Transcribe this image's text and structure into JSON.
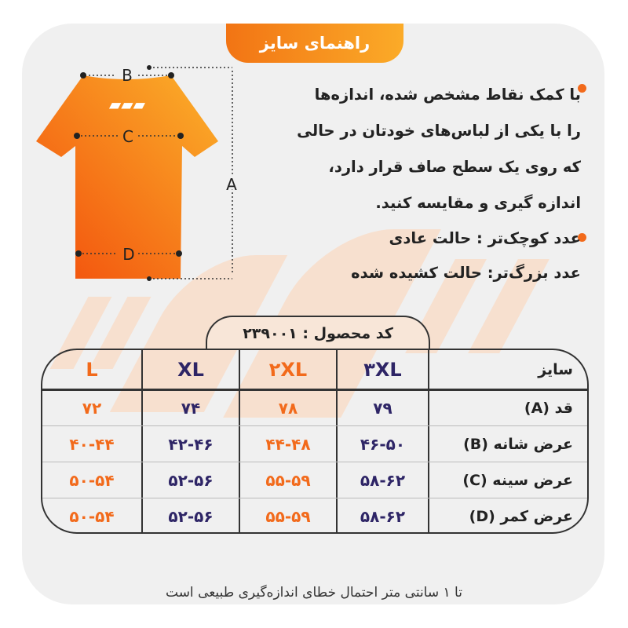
{
  "title": "راهنمای سایز",
  "instructions": {
    "bullet1_lines": [
      "با کمک نقاط مشخص شده، اندازه‌ها",
      "را با یکی از لباس‌های خودتان در حالی",
      "که روی یک سطح صاف قرار دارد،",
      "اندازه گیری و مقایسه کنید."
    ],
    "bullet2_lines": [
      "عدد کوچک‌تر : حالت عادی",
      "عدد بزرگ‌تر: حالت کشیده شده"
    ]
  },
  "diagram": {
    "labels": {
      "a": "A",
      "b": "B",
      "c": "C",
      "d": "D"
    }
  },
  "product_code": "کد محصول :  ۲۳۹۰۰۱",
  "table": {
    "header_label": "سایز",
    "sizes": [
      "۳XL",
      "۲XL",
      "XL",
      "L"
    ],
    "rows": [
      {
        "label": "قد (A)",
        "values": [
          "۷۹",
          "۷۸",
          "۷۴",
          "۷۲"
        ]
      },
      {
        "label": "عرض شانه (B)",
        "values": [
          "۴۶-۵۰",
          "۴۴-۴۸",
          "۴۲-۴۶",
          "۴۰-۴۴"
        ]
      },
      {
        "label": "عرض سینه (C)",
        "values": [
          "۵۸-۶۲",
          "۵۵-۵۹",
          "۵۲-۵۶",
          "۵۰-۵۴"
        ]
      },
      {
        "label": "عرض کمر (D)",
        "values": [
          "۵۸-۶۲",
          "۵۵-۵۹",
          "۵۲-۵۶",
          "۵۰-۵۴"
        ]
      }
    ]
  },
  "footer": "تا ۱ سانتی متر احتمال خطای اندازه‌گیری طبیعی است",
  "colors": {
    "orange": "#f26a1b",
    "navy": "#2e2566",
    "panel": "#f0f0f0"
  }
}
